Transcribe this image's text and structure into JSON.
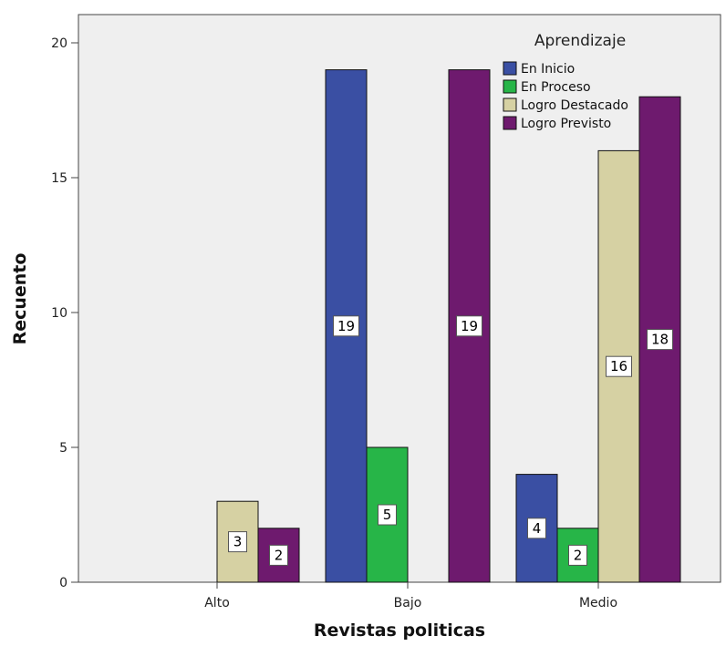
{
  "chart_data": {
    "type": "bar",
    "categories": [
      "Alto",
      "Bajo",
      "Medio"
    ],
    "series": [
      {
        "name": "En Inicio",
        "color": "#3a4fa3",
        "values": [
          0,
          19,
          4
        ]
      },
      {
        "name": "En Proceso",
        "color": "#27b548",
        "values": [
          0,
          5,
          2
        ]
      },
      {
        "name": "Logro Destacado",
        "color": "#d6d1a3",
        "values": [
          3,
          0,
          16
        ]
      },
      {
        "name": "Logro Previsto",
        "color": "#6e1a6e",
        "values": [
          2,
          19,
          18
        ]
      }
    ],
    "xlabel": "Revistas politicas",
    "ylabel": "Recuento",
    "ylim": [
      0,
      20
    ],
    "yticks": [
      0,
      5,
      10,
      15,
      20
    ],
    "legend_title": "Aprendizaje",
    "legend_position": "top-right",
    "plot_background": "#efefef",
    "grid": false
  }
}
